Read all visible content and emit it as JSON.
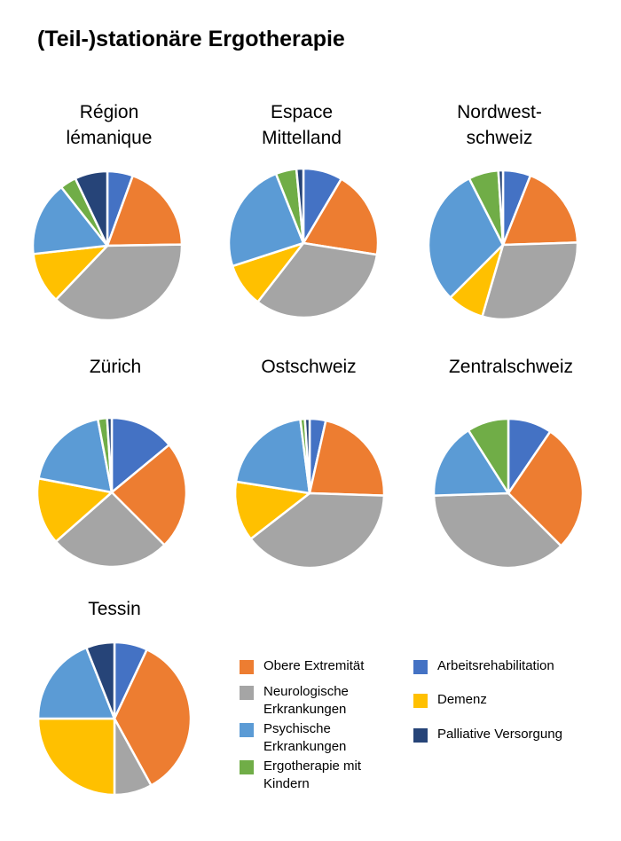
{
  "title": "(Teil-)stationäre Ergotherapie",
  "colors": {
    "obere": "#ED7D31",
    "neuro": "#A5A5A5",
    "psych": "#5B9BD5",
    "kinder": "#70AD47",
    "arbeit": "#4472C4",
    "demenz": "#FFC000",
    "palliativ": "#264478"
  },
  "legend": [
    {
      "key": "obere",
      "label": "Obere Extremität"
    },
    {
      "key": "arbeit",
      "label": "Arbeitsrehabilitation"
    },
    {
      "key": "neuro",
      "label": "Neurologische Erkrankungen"
    },
    {
      "key": "demenz",
      "label": "Demenz"
    },
    {
      "key": "psych",
      "label": "Psychische Erkrankungen"
    },
    {
      "key": "palliativ",
      "label": "Palliative Versorgung"
    },
    {
      "key": "kinder",
      "label": "Ergotherapie mit Kindern"
    }
  ],
  "chart_data": [
    {
      "type": "pie",
      "title_lines": [
        "Région",
        "lémanique"
      ],
      "slices": [
        {
          "key": "arbeit",
          "value": 5.5
        },
        {
          "key": "obere",
          "value": 19
        },
        {
          "key": "neuro",
          "value": 37
        },
        {
          "key": "demenz",
          "value": 11
        },
        {
          "key": "psych",
          "value": 16
        },
        {
          "key": "kinder",
          "value": 3.5
        },
        {
          "key": "palliativ",
          "value": 7
        }
      ]
    },
    {
      "type": "pie",
      "title_lines": [
        "Espace",
        "Mittelland"
      ],
      "slices": [
        {
          "key": "arbeit",
          "value": 8.5
        },
        {
          "key": "obere",
          "value": 19
        },
        {
          "key": "neuro",
          "value": 33
        },
        {
          "key": "demenz",
          "value": 9.5
        },
        {
          "key": "psych",
          "value": 24
        },
        {
          "key": "kinder",
          "value": 4.5
        },
        {
          "key": "palliativ",
          "value": 1.5
        }
      ]
    },
    {
      "type": "pie",
      "title_lines": [
        "Nordwest-",
        "schweiz"
      ],
      "slices": [
        {
          "key": "arbeit",
          "value": 6
        },
        {
          "key": "obere",
          "value": 18.5
        },
        {
          "key": "neuro",
          "value": 30
        },
        {
          "key": "demenz",
          "value": 8
        },
        {
          "key": "psych",
          "value": 30
        },
        {
          "key": "kinder",
          "value": 6.5
        },
        {
          "key": "palliativ",
          "value": 1
        }
      ]
    },
    {
      "type": "pie",
      "title_lines": [
        "Zürich"
      ],
      "slices": [
        {
          "key": "arbeit",
          "value": 14
        },
        {
          "key": "obere",
          "value": 23.5
        },
        {
          "key": "neuro",
          "value": 26
        },
        {
          "key": "demenz",
          "value": 14.5
        },
        {
          "key": "psych",
          "value": 19
        },
        {
          "key": "kinder",
          "value": 2
        },
        {
          "key": "palliativ",
          "value": 1
        }
      ]
    },
    {
      "type": "pie",
      "title_lines": [
        "Ostschweiz"
      ],
      "slices": [
        {
          "key": "arbeit",
          "value": 3.5
        },
        {
          "key": "obere",
          "value": 22
        },
        {
          "key": "neuro",
          "value": 39
        },
        {
          "key": "demenz",
          "value": 13
        },
        {
          "key": "psych",
          "value": 20.5
        },
        {
          "key": "kinder",
          "value": 1
        },
        {
          "key": "palliativ",
          "value": 1
        }
      ]
    },
    {
      "type": "pie",
      "title_lines": [
        "Zentralschweiz"
      ],
      "slices": [
        {
          "key": "arbeit",
          "value": 9.5
        },
        {
          "key": "obere",
          "value": 28
        },
        {
          "key": "neuro",
          "value": 37
        },
        {
          "key": "demenz",
          "value": 0
        },
        {
          "key": "psych",
          "value": 16.5
        },
        {
          "key": "kinder",
          "value": 9
        },
        {
          "key": "palliativ",
          "value": 0
        }
      ]
    },
    {
      "type": "pie",
      "title_lines": [
        "Tessin"
      ],
      "slices": [
        {
          "key": "arbeit",
          "value": 7
        },
        {
          "key": "obere",
          "value": 35
        },
        {
          "key": "neuro",
          "value": 8
        },
        {
          "key": "demenz",
          "value": 25
        },
        {
          "key": "psych",
          "value": 19
        },
        {
          "key": "kinder",
          "value": 0
        },
        {
          "key": "palliativ",
          "value": 6
        }
      ]
    }
  ]
}
